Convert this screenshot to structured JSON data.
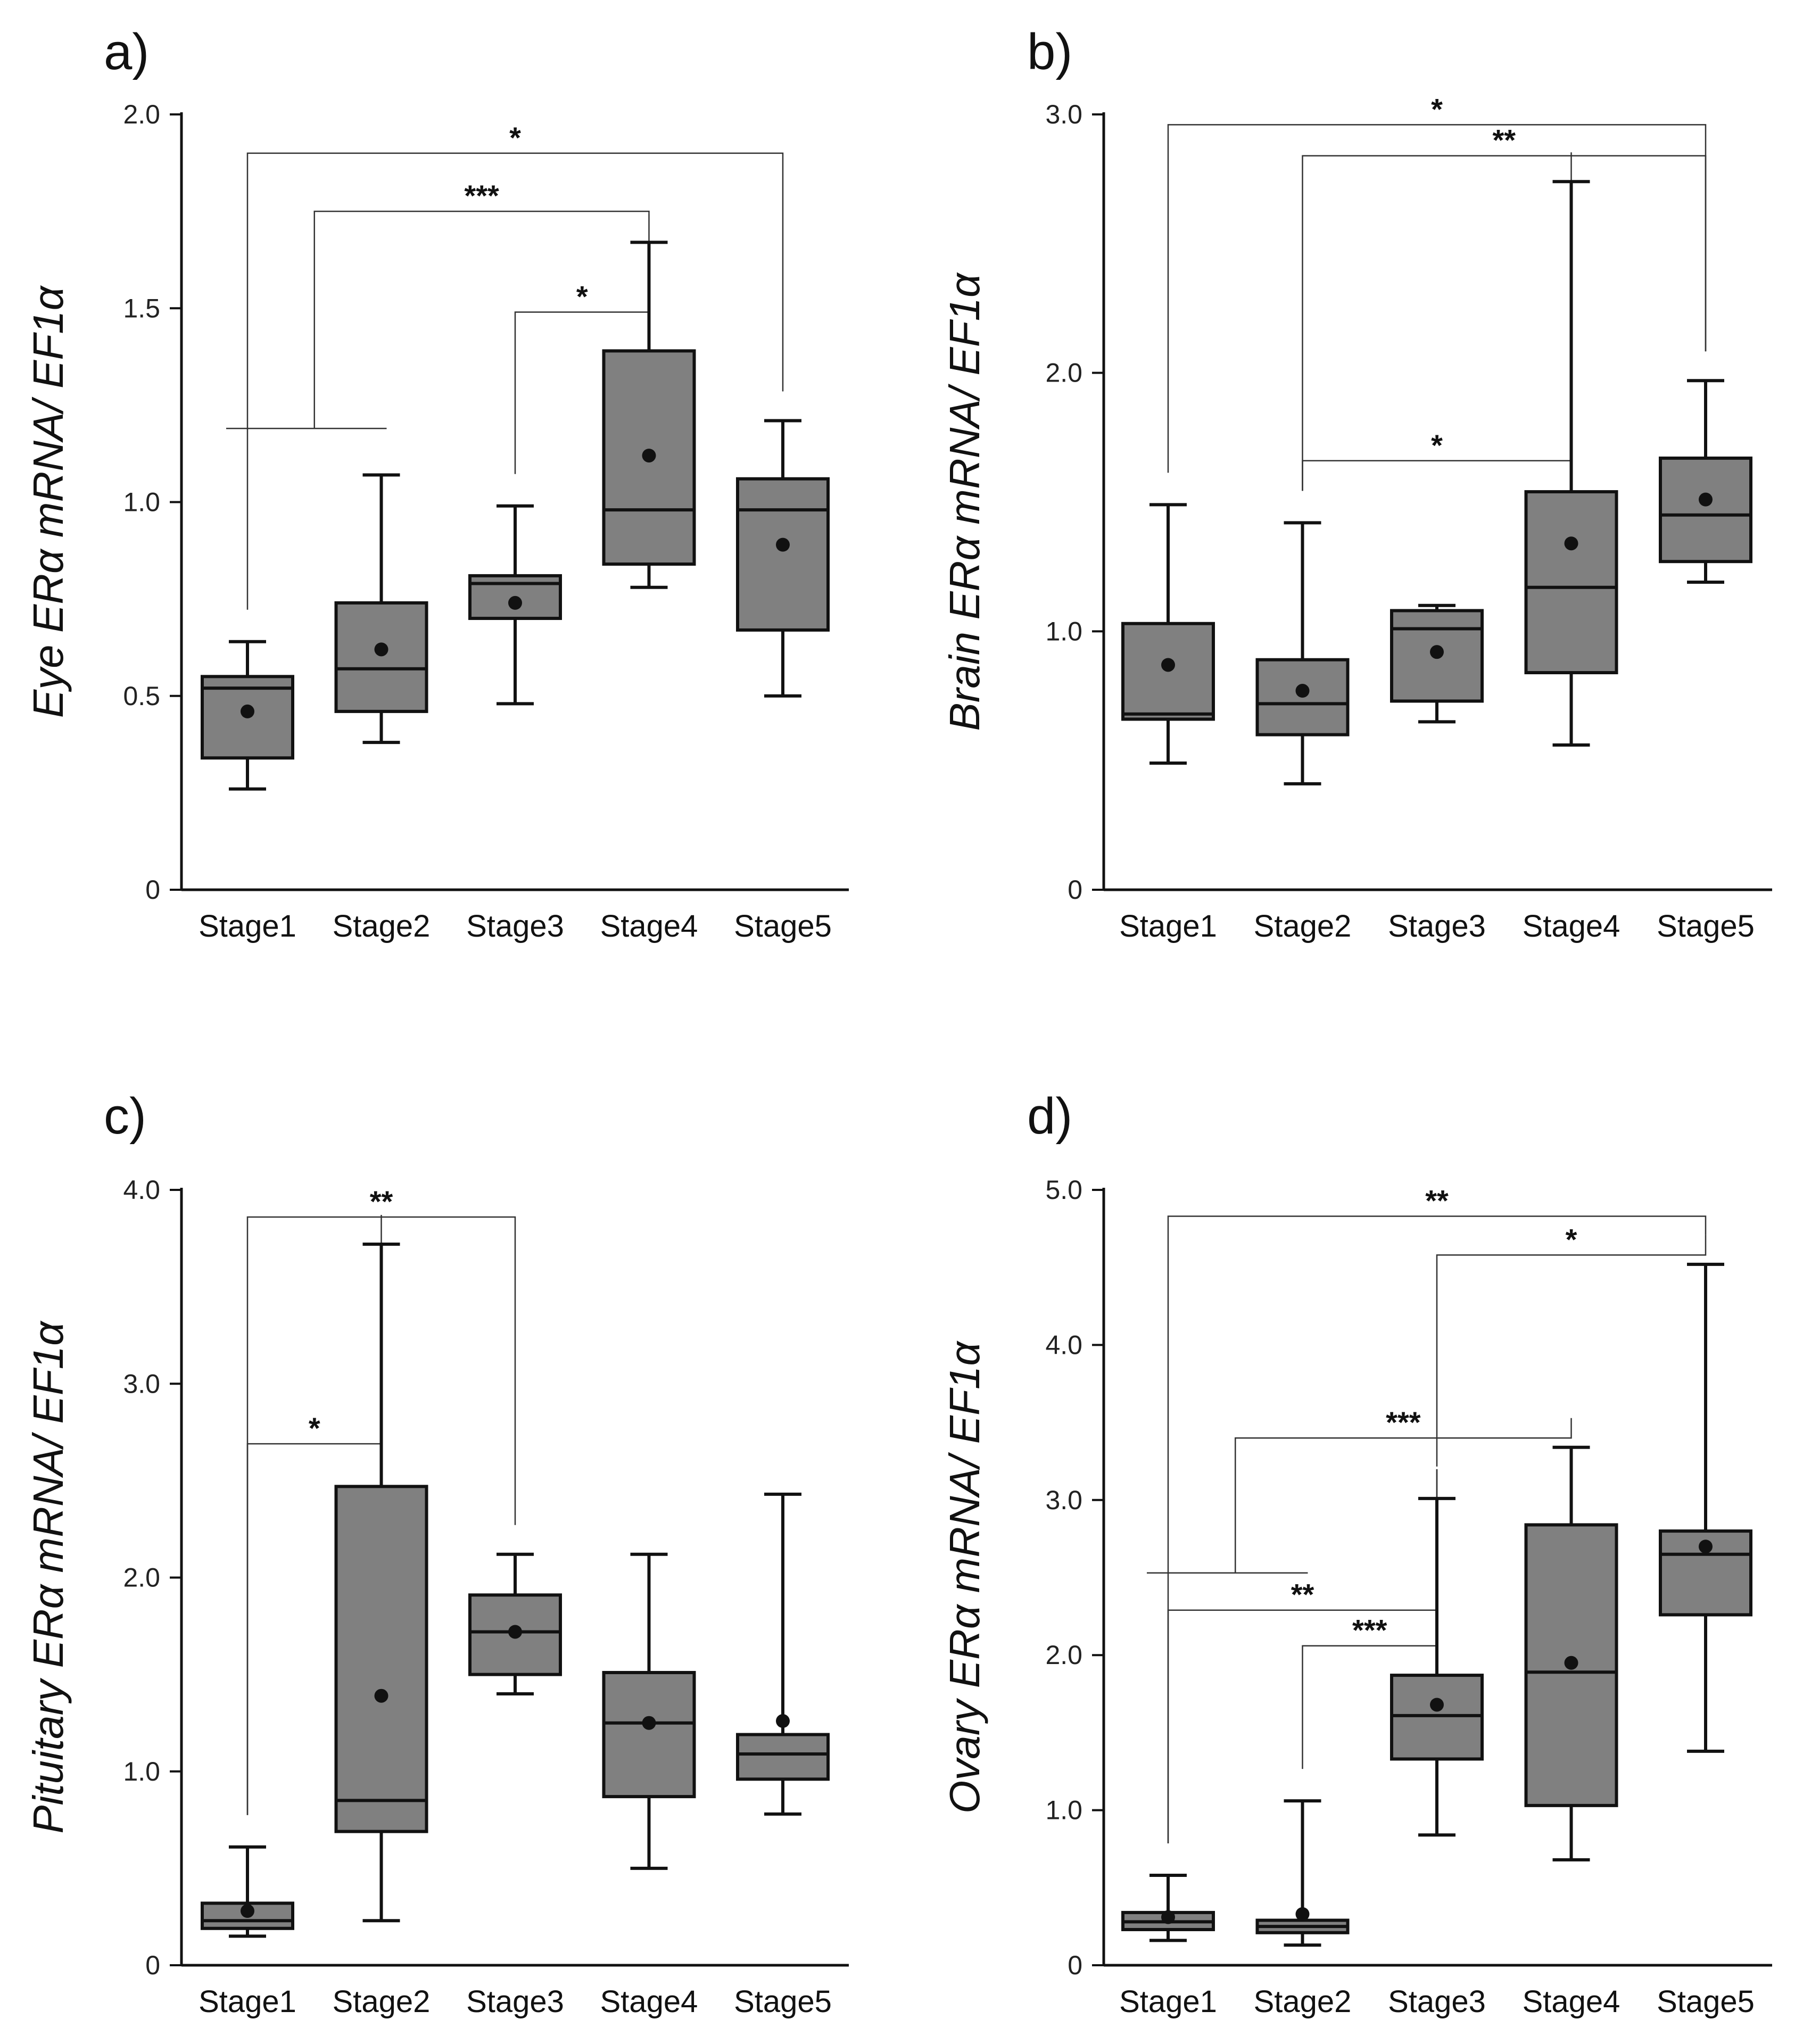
{
  "chart_data": [
    {
      "type": "box",
      "panel": "a)",
      "ylabel": "Eye ERα mRNA/ EF1α",
      "ylim": [
        0,
        2.0
      ],
      "yticks": [
        0,
        0.5,
        1.0,
        1.5,
        2.0
      ],
      "ytick_labels": [
        "0",
        "0.5",
        "1.0",
        "1.5",
        "2.0"
      ],
      "categories": [
        "Stage1",
        "Stage2",
        "Stage3",
        "Stage4",
        "Stage5"
      ],
      "boxes": [
        {
          "min": 0.26,
          "q1": 0.34,
          "median": 0.52,
          "q3": 0.55,
          "max": 0.64,
          "mean": 0.46
        },
        {
          "min": 0.38,
          "q1": 0.46,
          "median": 0.57,
          "q3": 0.74,
          "max": 1.07,
          "mean": 0.62
        },
        {
          "min": 0.48,
          "q1": 0.7,
          "median": 0.79,
          "q3": 0.81,
          "max": 0.99,
          "mean": 0.74
        },
        {
          "min": 0.78,
          "q1": 0.84,
          "median": 0.98,
          "q3": 1.39,
          "max": 1.67,
          "mean": 1.12
        },
        {
          "min": 0.5,
          "q1": 0.67,
          "median": 0.98,
          "q3": 1.06,
          "max": 1.21,
          "mean": 0.89
        }
      ],
      "significance": [
        {
          "from": 0,
          "to": 4,
          "y": 1.9,
          "label": "*"
        },
        {
          "from": 1,
          "to": 3,
          "y": 1.75,
          "label": "***",
          "group": {
            "i0": 0,
            "i1": 1,
            "y": 1.19
          }
        },
        {
          "from": 2,
          "to": 3,
          "y": 1.49,
          "label": "*"
        }
      ]
    },
    {
      "type": "box",
      "panel": "b)",
      "ylabel": "Brain ERα mRNA/ EF1α",
      "ylim": [
        0,
        3.0
      ],
      "yticks": [
        0,
        1.0,
        2.0,
        3.0
      ],
      "ytick_labels": [
        "0",
        "1.0",
        "2.0",
        "3.0"
      ],
      "categories": [
        "Stage1",
        "Stage2",
        "Stage3",
        "Stage4",
        "Stage5"
      ],
      "boxes": [
        {
          "min": 0.49,
          "q1": 0.66,
          "median": 0.68,
          "q3": 1.03,
          "max": 1.49,
          "mean": 0.87
        },
        {
          "min": 0.41,
          "q1": 0.6,
          "median": 0.72,
          "q3": 0.89,
          "max": 1.42,
          "mean": 0.77
        },
        {
          "min": 0.65,
          "q1": 0.73,
          "median": 1.01,
          "q3": 1.08,
          "max": 1.1,
          "mean": 0.92
        },
        {
          "min": 0.56,
          "q1": 0.84,
          "median": 1.17,
          "q3": 1.54,
          "max": 2.74,
          "mean": 1.34
        },
        {
          "min": 1.19,
          "q1": 1.27,
          "median": 1.45,
          "q3": 1.67,
          "max": 1.97,
          "mean": 1.51
        }
      ],
      "significance": [
        {
          "from": 0,
          "to": 4,
          "y": 2.96,
          "label": "*"
        },
        {
          "from": 1,
          "to": 4,
          "y": 2.84,
          "label": "**"
        },
        {
          "from": 1,
          "to": 3,
          "y": 1.66,
          "label": "*"
        }
      ]
    },
    {
      "type": "box",
      "panel": "c)",
      "ylabel": "Pituitary ERα mRNA/ EF1α",
      "ylim": [
        0,
        4.0
      ],
      "yticks": [
        0,
        1.0,
        2.0,
        3.0,
        4.0
      ],
      "ytick_labels": [
        "0",
        "1.0",
        "2.0",
        "3.0",
        "4.0"
      ],
      "categories": [
        "Stage1",
        "Stage2",
        "Stage3",
        "Stage4",
        "Stage5"
      ],
      "boxes": [
        {
          "min": 0.15,
          "q1": 0.19,
          "median": 0.23,
          "q3": 0.32,
          "max": 0.61,
          "mean": 0.28
        },
        {
          "min": 0.23,
          "q1": 0.69,
          "median": 0.85,
          "q3": 2.47,
          "max": 3.72,
          "mean": 1.39
        },
        {
          "min": 1.4,
          "q1": 1.5,
          "median": 1.72,
          "q3": 1.91,
          "max": 2.12,
          "mean": 1.72
        },
        {
          "min": 0.5,
          "q1": 0.87,
          "median": 1.25,
          "q3": 1.51,
          "max": 2.12,
          "mean": 1.25
        },
        {
          "min": 0.78,
          "q1": 0.96,
          "median": 1.09,
          "q3": 1.19,
          "max": 2.43,
          "mean": 1.26
        }
      ],
      "significance": [
        {
          "from": 0,
          "to": 2,
          "y": 3.86,
          "label": "**"
        },
        {
          "from": 0,
          "to": 1,
          "y": 2.69,
          "label": "*"
        }
      ]
    },
    {
      "type": "box",
      "panel": "d)",
      "ylabel": "Ovary ERα mRNA/ EF1α",
      "ylim": [
        0,
        5.0
      ],
      "yticks": [
        0,
        1.0,
        2.0,
        3.0,
        4.0,
        5.0
      ],
      "ytick_labels": [
        "0",
        "1.0",
        "2.0",
        "3.0",
        "4.0",
        "5.0"
      ],
      "categories": [
        "Stage1",
        "Stage2",
        "Stage3",
        "Stage4",
        "Stage5"
      ],
      "boxes": [
        {
          "min": 0.16,
          "q1": 0.23,
          "median": 0.28,
          "q3": 0.34,
          "max": 0.58,
          "mean": 0.31
        },
        {
          "min": 0.13,
          "q1": 0.21,
          "median": 0.25,
          "q3": 0.29,
          "max": 1.06,
          "mean": 0.33
        },
        {
          "min": 0.84,
          "q1": 1.33,
          "median": 1.61,
          "q3": 1.87,
          "max": 3.01,
          "mean": 1.68
        },
        {
          "min": 0.68,
          "q1": 1.03,
          "median": 1.89,
          "q3": 2.84,
          "max": 3.34,
          "mean": 1.95
        },
        {
          "min": 1.38,
          "q1": 2.26,
          "median": 2.65,
          "q3": 2.8,
          "max": 4.52,
          "mean": 2.7
        }
      ],
      "significance": [
        {
          "from": 0,
          "to": 4,
          "y": 4.83,
          "label": "**"
        },
        {
          "from": 2,
          "to": 4,
          "y": 4.58,
          "label": "*"
        },
        {
          "from": 1,
          "to": 3,
          "y": 3.4,
          "label": "***",
          "group": {
            "i0": 0,
            "i1": 1,
            "y": 2.53
          }
        },
        {
          "from": 0,
          "to": 2,
          "y": 2.29,
          "label": "**"
        },
        {
          "from": 1,
          "to": 2,
          "y": 2.06,
          "label": "***"
        }
      ]
    }
  ]
}
